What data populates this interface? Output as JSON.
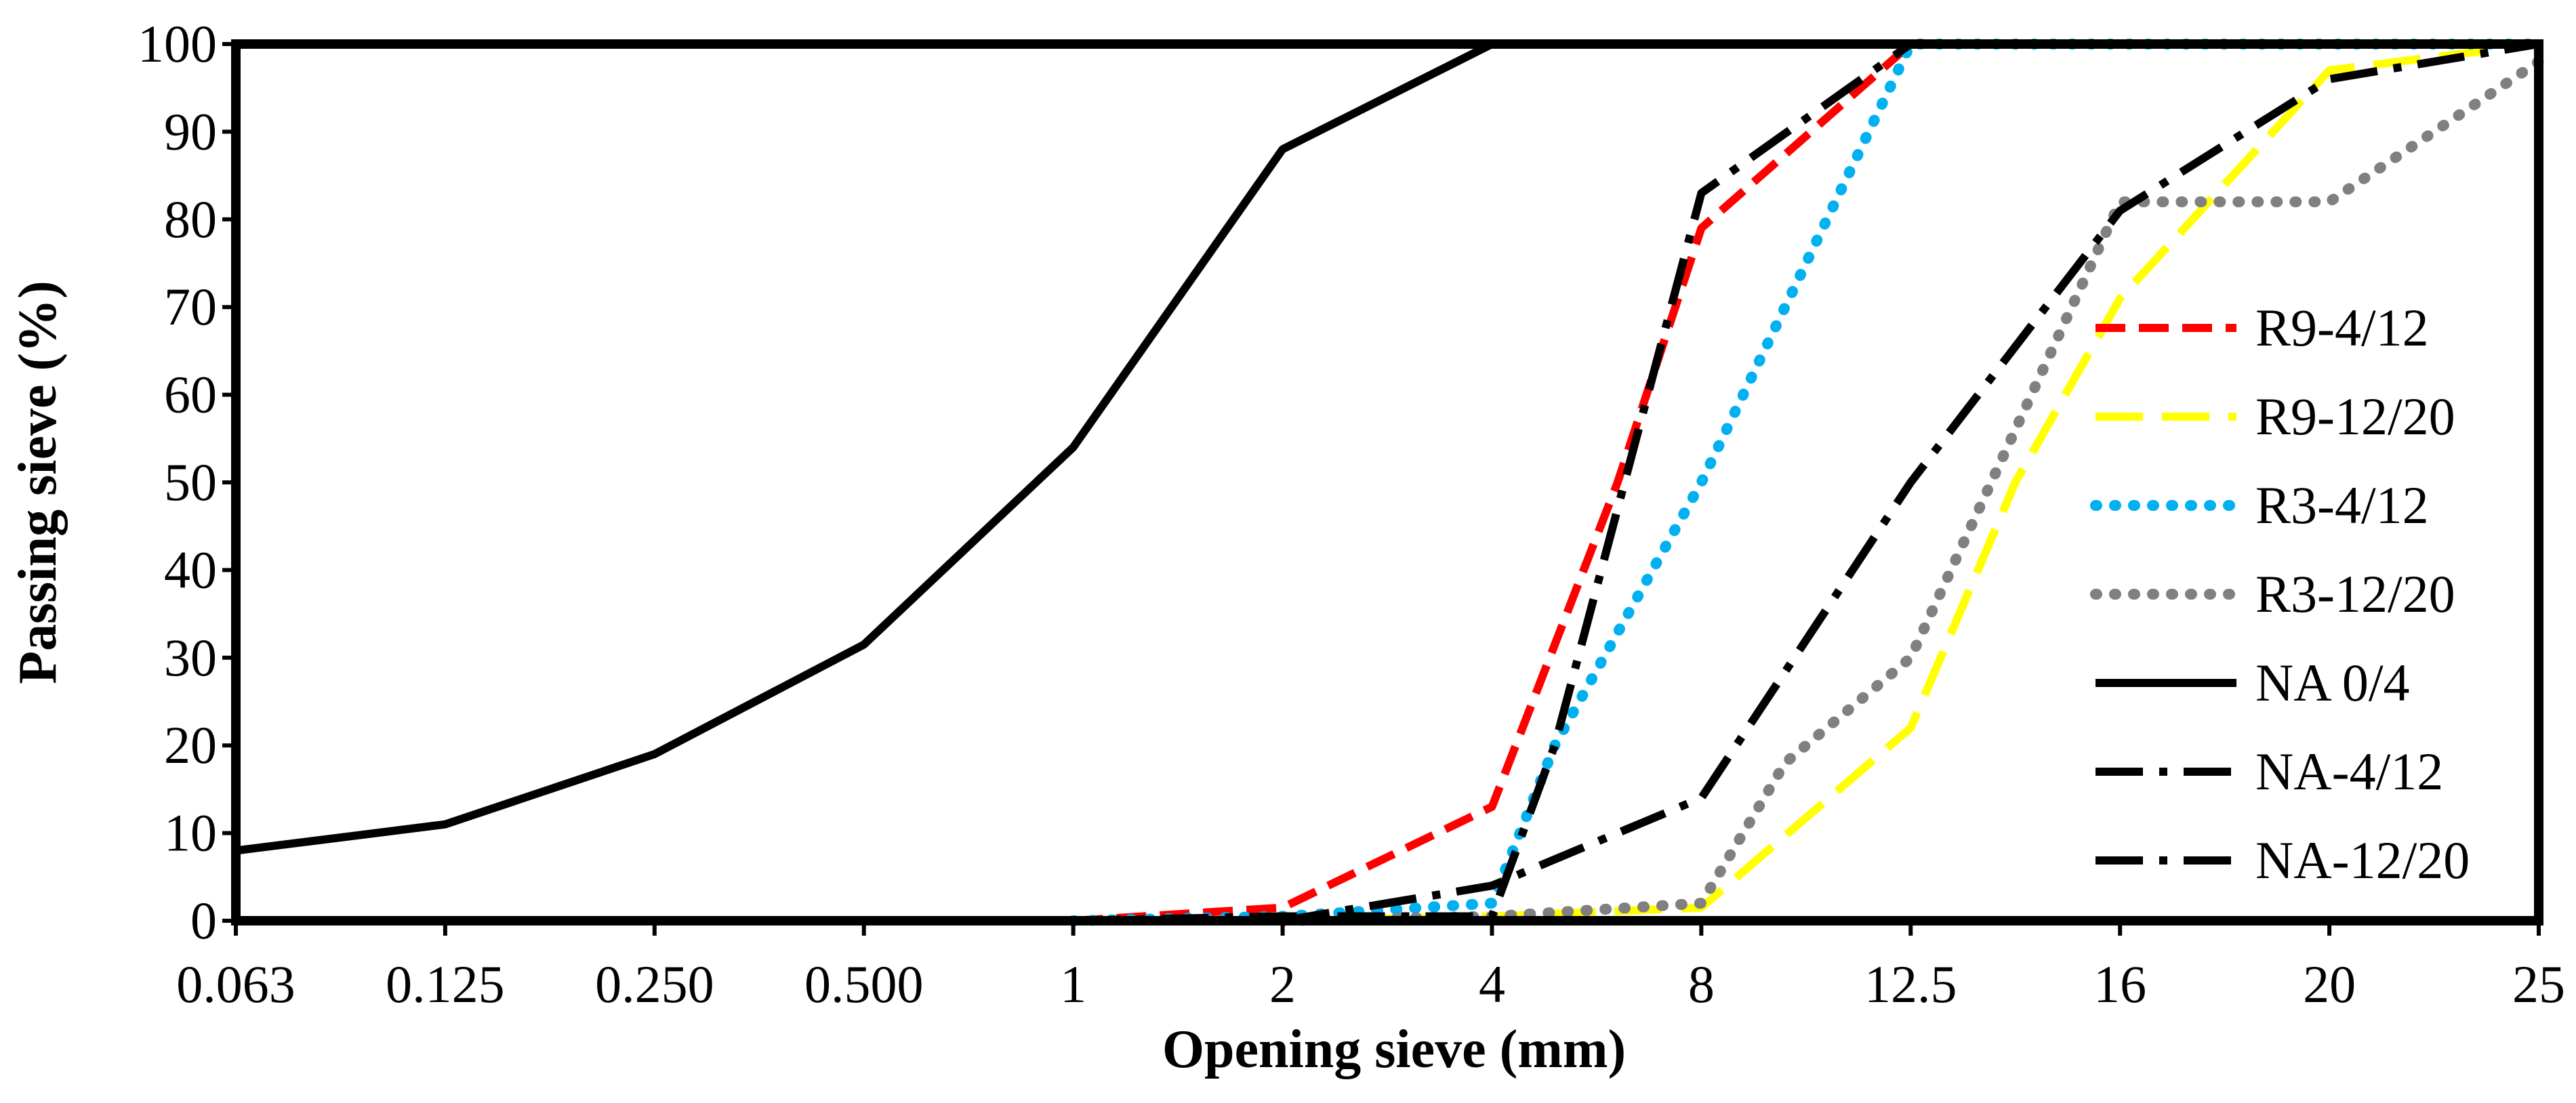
{
  "chart_data": {
    "type": "line",
    "title": "",
    "xlabel": "Opening sieve (mm)",
    "ylabel": "Passing sieve (%)",
    "categories": [
      "0.063",
      "0.125",
      "0.250",
      "0.500",
      "1",
      "2",
      "4",
      "8",
      "12.5",
      "16",
      "20",
      "25"
    ],
    "ylim": [
      0,
      100
    ],
    "yticks": [
      0,
      10,
      20,
      30,
      40,
      50,
      60,
      70,
      80,
      90,
      100
    ],
    "grid": false,
    "legend_position": "right",
    "series": [
      {
        "name": "R9-4/12",
        "color": "#ff0000",
        "style": "dashed",
        "points": [
          [
            4,
            0
          ],
          [
            5,
            1.5
          ],
          [
            6,
            13
          ],
          [
            6.6,
            50
          ],
          [
            7,
            79
          ],
          [
            8,
            100
          ],
          [
            9,
            100
          ],
          [
            10,
            100
          ],
          [
            11,
            100
          ]
        ]
      },
      {
        "name": "R9-12/20",
        "color": "#ffff00",
        "style": "long-dashed",
        "points": [
          [
            5,
            0
          ],
          [
            6,
            0.5
          ],
          [
            7,
            1.5
          ],
          [
            8,
            22
          ],
          [
            8.5,
            50
          ],
          [
            9,
            71
          ],
          [
            10,
            97
          ],
          [
            11,
            100
          ]
        ]
      },
      {
        "name": "R3-4/12",
        "color": "#00b0f0",
        "style": "dotted",
        "points": [
          [
            4,
            0
          ],
          [
            5,
            0.5
          ],
          [
            6,
            2
          ],
          [
            6.3,
            20
          ],
          [
            7,
            50
          ],
          [
            8,
            100
          ],
          [
            9,
            100
          ],
          [
            10,
            100
          ],
          [
            11,
            100
          ]
        ]
      },
      {
        "name": "R3-12/20",
        "color": "#808080",
        "style": "dotted",
        "points": [
          [
            5,
            0
          ],
          [
            6,
            0.5
          ],
          [
            7,
            2
          ],
          [
            7.4,
            18
          ],
          [
            8,
            30
          ],
          [
            9,
            82
          ],
          [
            10,
            82
          ],
          [
            11,
            98
          ]
        ]
      },
      {
        "name": "NA 0/4",
        "color": "#000000",
        "style": "solid",
        "points": [
          [
            0,
            8
          ],
          [
            1,
            11
          ],
          [
            2,
            19
          ],
          [
            3,
            31.5
          ],
          [
            4,
            54
          ],
          [
            5,
            88
          ],
          [
            6,
            100
          ]
        ]
      },
      {
        "name": "NA-4/12",
        "color": "#000000",
        "style": "dash-dot",
        "points": [
          [
            4,
            0
          ],
          [
            5,
            0.5
          ],
          [
            6,
            0.5
          ],
          [
            6.3,
            20
          ],
          [
            7,
            83
          ],
          [
            8,
            100
          ],
          [
            9,
            100
          ],
          [
            10,
            100
          ],
          [
            11,
            100
          ]
        ]
      },
      {
        "name": "NA-12/20",
        "color": "#000000",
        "style": "dash-dot",
        "points": [
          [
            5,
            0
          ],
          [
            6,
            4
          ],
          [
            7,
            14
          ],
          [
            8,
            50
          ],
          [
            9,
            81
          ],
          [
            10,
            96
          ],
          [
            11,
            100
          ]
        ]
      }
    ]
  }
}
